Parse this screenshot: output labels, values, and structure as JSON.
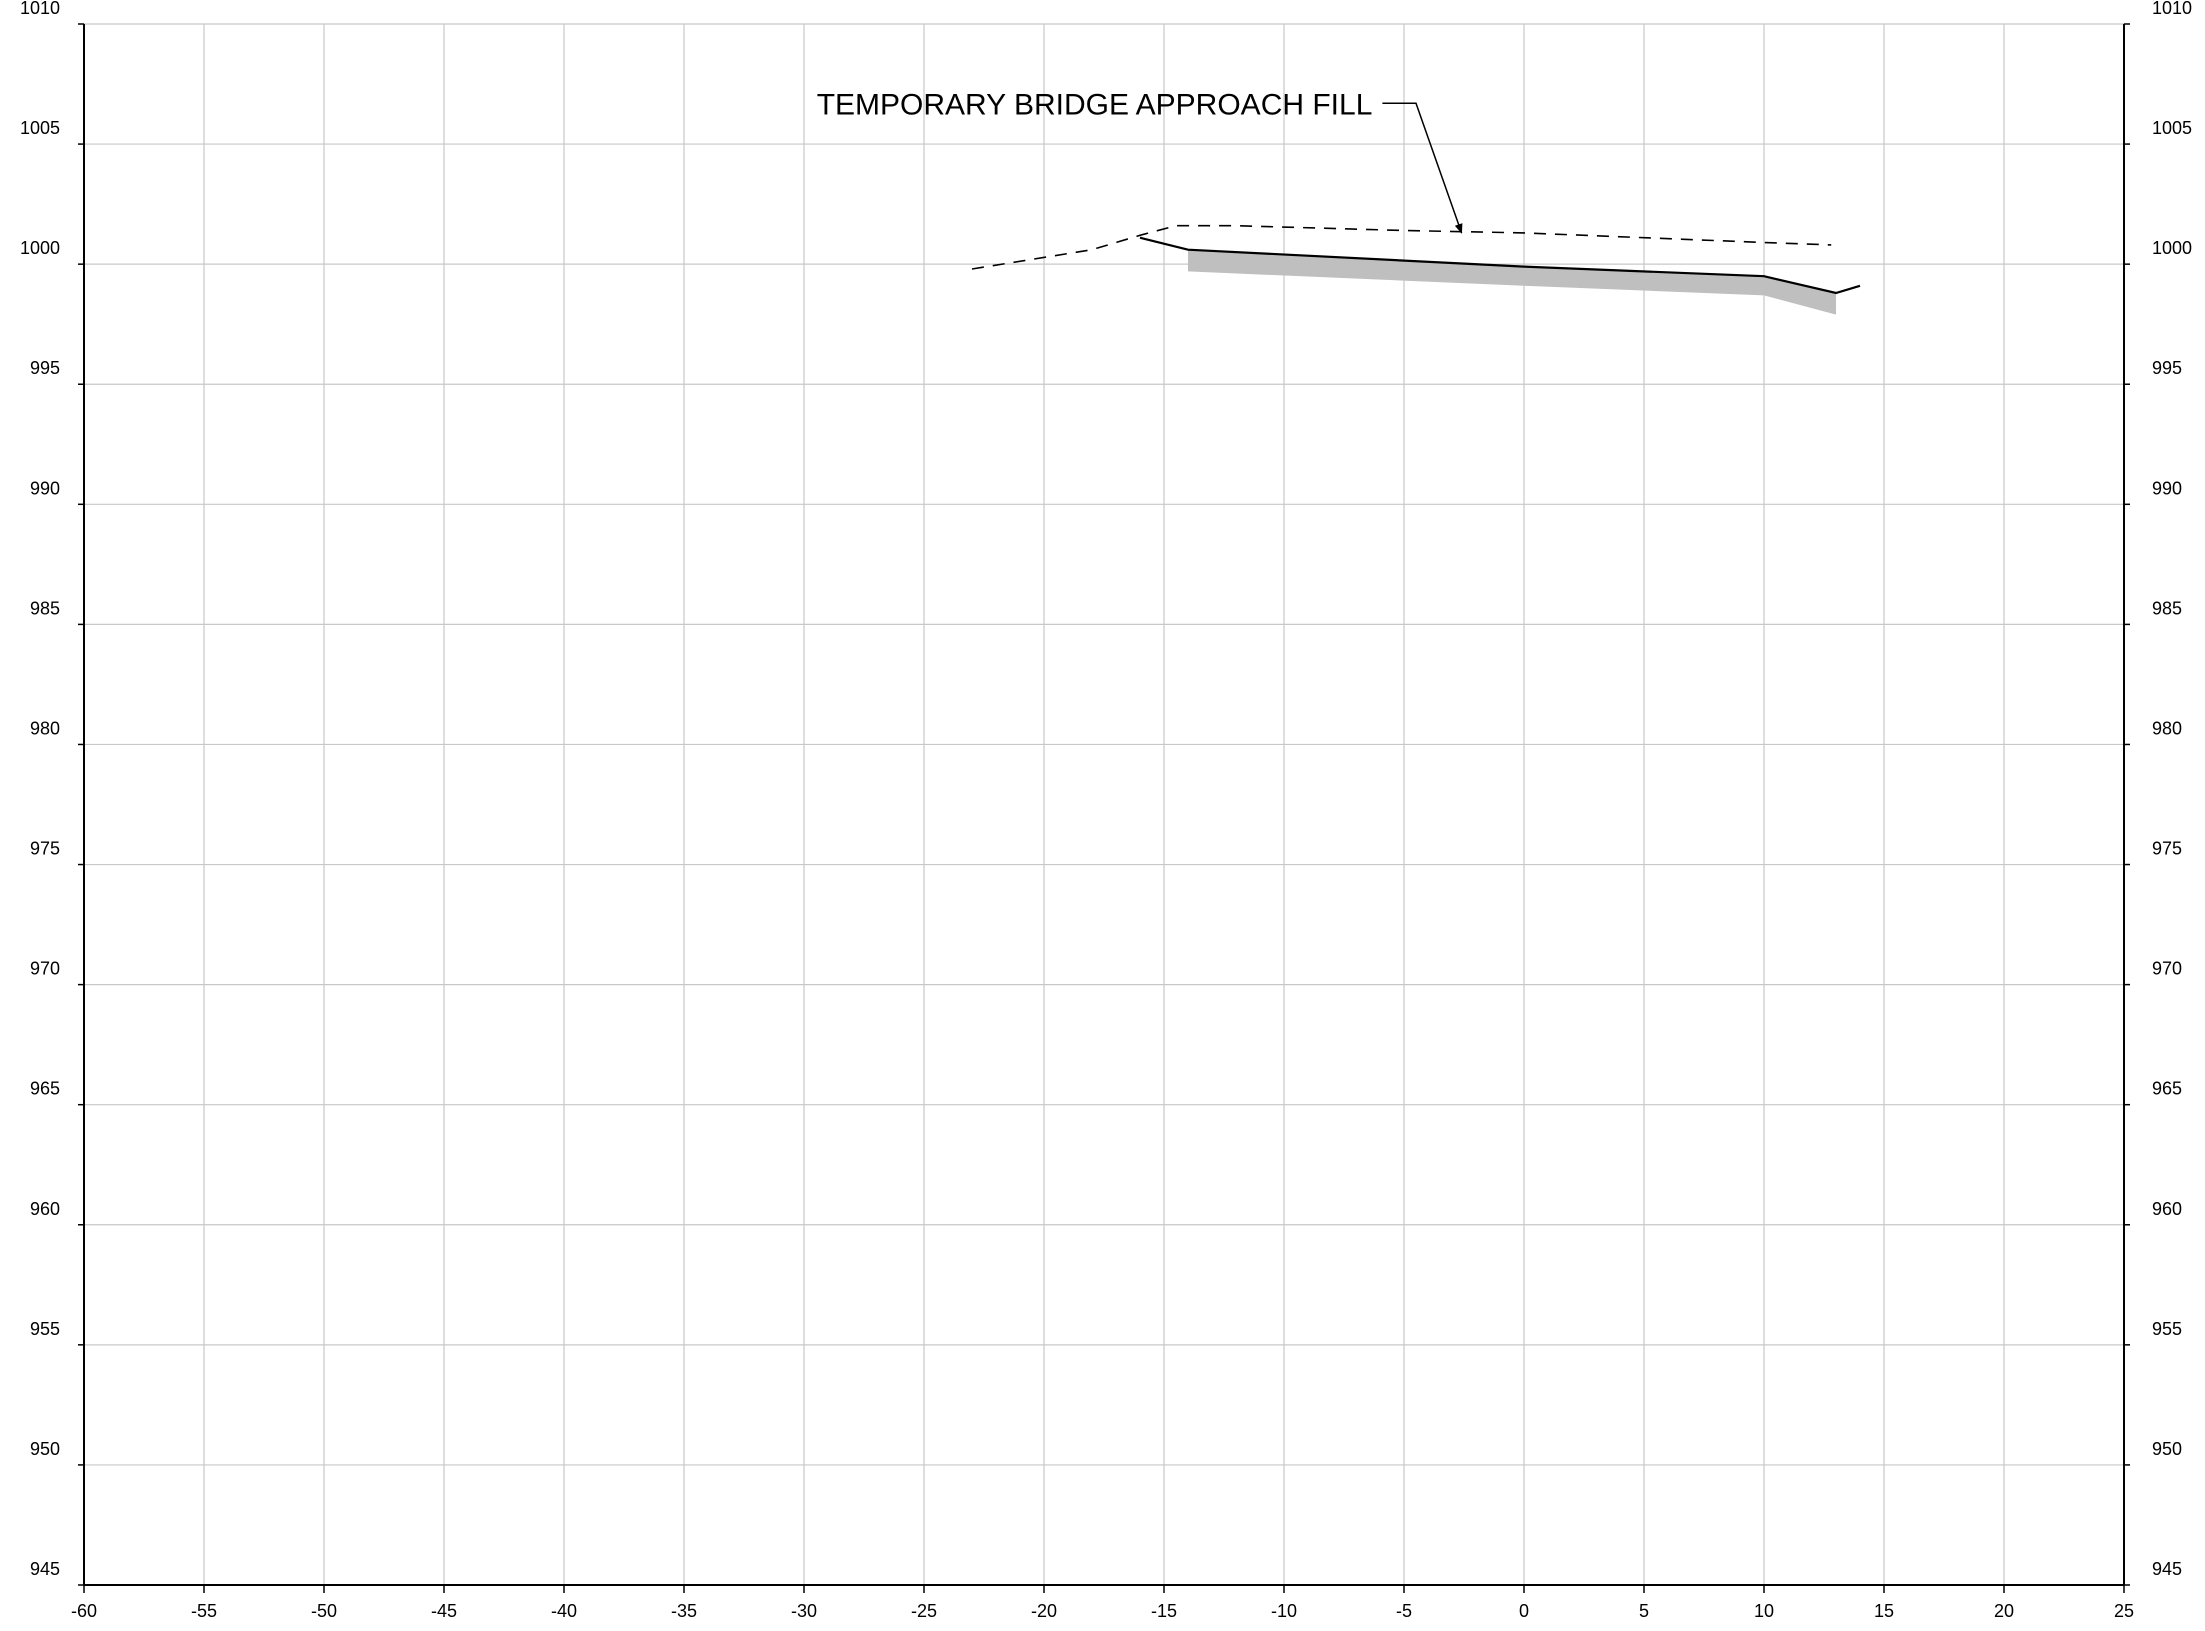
{
  "chart_data": {
    "type": "line",
    "title": "",
    "xlabel": "",
    "ylabel": "",
    "xlim": [
      -60,
      25
    ],
    "ylim": [
      945,
      1010
    ],
    "grid": true,
    "x_ticks": [
      -60,
      -55,
      -50,
      -45,
      -40,
      -35,
      -30,
      -25,
      -20,
      -15,
      -10,
      -5,
      0,
      5,
      10,
      15,
      20,
      25
    ],
    "y_ticks": [
      945,
      950,
      955,
      960,
      965,
      970,
      975,
      980,
      985,
      990,
      995,
      1000,
      1005,
      1010
    ],
    "x_tick_labels": [
      "-60",
      "-55",
      "-50",
      "-45",
      "-40",
      "-35",
      "-30",
      "-25",
      "-20",
      "-15",
      "-10",
      "-5",
      "0",
      "5",
      "10",
      "15",
      "20",
      "25"
    ],
    "y_tick_labels": [
      "945",
      "950",
      "955",
      "960",
      "965",
      "970",
      "975",
      "980",
      "985",
      "990",
      "995",
      "1000",
      "1005",
      "1010"
    ],
    "series": [
      {
        "style": "dashed",
        "color": "#000000",
        "points": [
          [
            -23,
            999.8
          ],
          [
            -18,
            1000.6
          ],
          [
            -16,
            1001.2
          ],
          [
            -14.5,
            1001.6
          ],
          [
            -12,
            1001.6
          ],
          [
            -5,
            1001.4
          ],
          [
            0,
            1001.3
          ],
          [
            5,
            1001.1
          ],
          [
            10,
            1000.9
          ],
          [
            12.8,
            1000.8
          ]
        ]
      },
      {
        "style": "solid",
        "color": "#000000",
        "points": [
          [
            -16,
            1001.1
          ],
          [
            -14,
            1000.6
          ],
          [
            0,
            999.9
          ],
          [
            10,
            999.5
          ],
          [
            13,
            998.8
          ],
          [
            14,
            999.1
          ]
        ]
      },
      {
        "style": "filled-band",
        "color": "#bfbfbf",
        "upper": [
          [
            -14,
            1000.6
          ],
          [
            0,
            999.9
          ],
          [
            10,
            999.5
          ],
          [
            13,
            998.8
          ]
        ],
        "lower": [
          [
            -14,
            999.7
          ],
          [
            0,
            999.1
          ],
          [
            10,
            998.7
          ],
          [
            13,
            997.9
          ]
        ]
      }
    ],
    "annotations": [
      {
        "text": "TEMPORARY BRIDGE APPROACH FILL",
        "arrow_path": [
          [
            -5.9,
            1006.7
          ],
          [
            -4.5,
            1006.7
          ],
          [
            -2.6,
            1001.3
          ]
        ]
      }
    ]
  }
}
